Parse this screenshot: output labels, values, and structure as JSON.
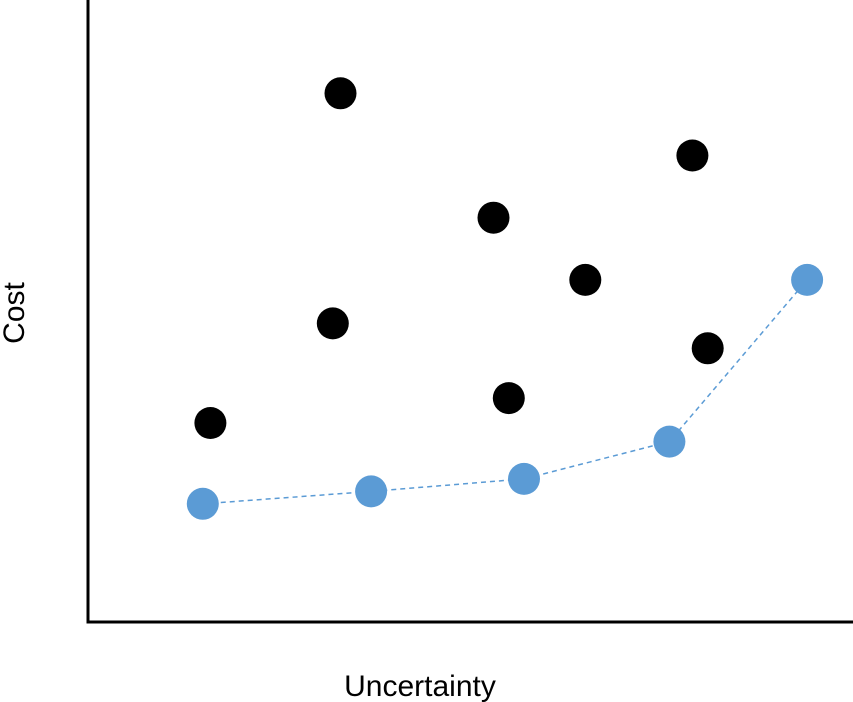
{
  "chart_data": {
    "type": "scatter",
    "xlabel": "Uncertainty",
    "ylabel": "Cost",
    "xlim": [
      0,
      100
    ],
    "ylim": [
      0,
      100
    ],
    "grid": false,
    "legend": "none",
    "series": [
      {
        "color": "#000000",
        "line": false,
        "points": [
          {
            "x": 16,
            "y": 32
          },
          {
            "x": 33,
            "y": 85
          },
          {
            "x": 32,
            "y": 48
          },
          {
            "x": 53,
            "y": 65
          },
          {
            "x": 55,
            "y": 36
          },
          {
            "x": 65,
            "y": 55
          },
          {
            "x": 79,
            "y": 75
          },
          {
            "x": 81,
            "y": 44
          }
        ]
      },
      {
        "color": "#5B9BD5",
        "line": true,
        "line_style": "dashed",
        "points": [
          {
            "x": 15,
            "y": 19
          },
          {
            "x": 37,
            "y": 21
          },
          {
            "x": 57,
            "y": 23
          },
          {
            "x": 76,
            "y": 29
          },
          {
            "x": 94,
            "y": 55
          }
        ]
      }
    ]
  }
}
